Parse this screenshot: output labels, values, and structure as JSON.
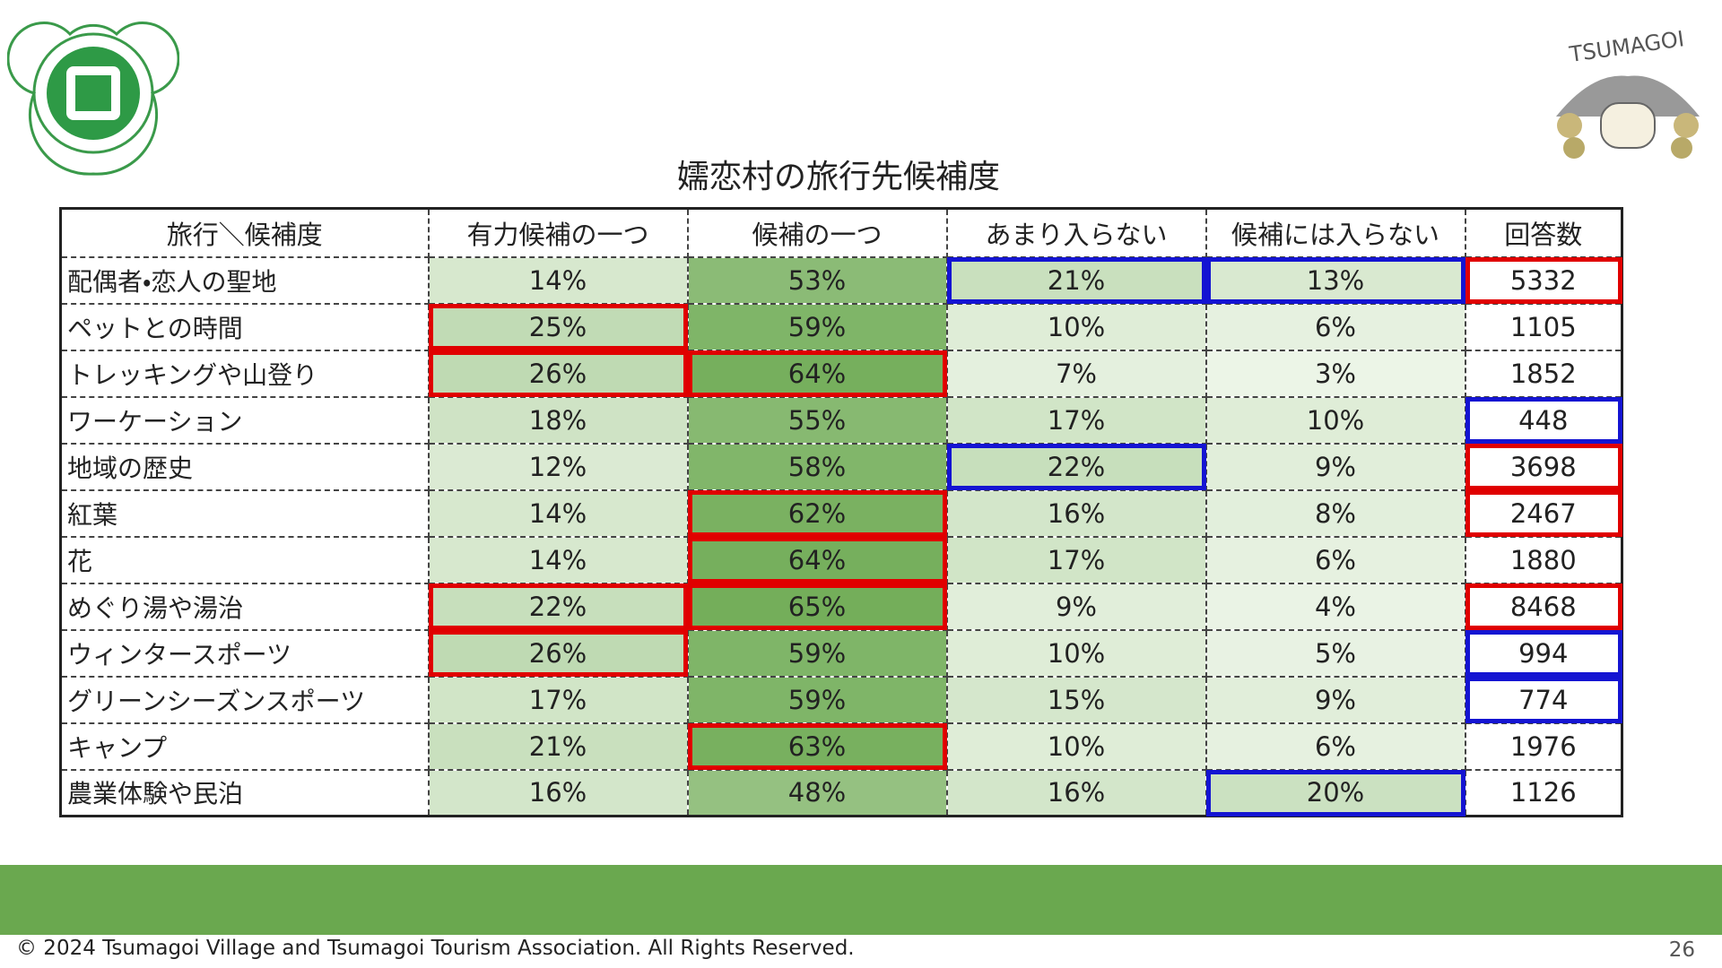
{
  "logo_text": "TSUMAGOI",
  "title": "嬬恋村の旅行先候補度",
  "table": {
    "header": [
      "旅行＼候補度",
      "有力候補の一つ",
      "候補の一つ",
      "あまり入らない",
      "候補には入らない",
      "回答数"
    ],
    "rows": [
      [
        "配偶者・恋人の聖地",
        "14%",
        "53%",
        "21%",
        "13%",
        "5332"
      ],
      [
        "ペットとの時間",
        "25%",
        "59%",
        "10%",
        "6%",
        "1105"
      ],
      [
        "トレッキングや山登り",
        "26%",
        "64%",
        "7%",
        "3%",
        "1852"
      ],
      [
        "ワーケーション",
        "18%",
        "55%",
        "17%",
        "10%",
        "448"
      ],
      [
        "地域の歴史",
        "12%",
        "58%",
        "22%",
        "9%",
        "3698"
      ],
      [
        "紅葉",
        "14%",
        "62%",
        "16%",
        "8%",
        "2467"
      ],
      [
        "花",
        "14%",
        "64%",
        "17%",
        "6%",
        "1880"
      ],
      [
        "めぐり湯や湯治",
        "22%",
        "65%",
        "9%",
        "4%",
        "8468"
      ],
      [
        "ウィンタースポーツ",
        "26%",
        "59%",
        "10%",
        "5%",
        "994"
      ],
      [
        "グリーンシーズンスポーツ",
        "17%",
        "59%",
        "15%",
        "9%",
        "774"
      ],
      [
        "キャンプ",
        "21%",
        "63%",
        "10%",
        "6%",
        "1976"
      ],
      [
        "農業体験や民泊",
        "16%",
        "48%",
        "16%",
        "20%",
        "1126"
      ]
    ],
    "highlights": [
      {
        "row": 0,
        "column": 3,
        "color": "blue"
      },
      {
        "row": 0,
        "column": 4,
        "color": "blue"
      },
      {
        "row": 0,
        "column": 5,
        "color": "red"
      },
      {
        "row": 1,
        "column": 1,
        "color": "red"
      },
      {
        "row": 2,
        "column": 1,
        "color": "red"
      },
      {
        "row": 2,
        "column": 2,
        "color": "red"
      },
      {
        "row": 3,
        "column": 5,
        "color": "blue"
      },
      {
        "row": 4,
        "column": 3,
        "color": "blue"
      },
      {
        "row": 4,
        "column": 5,
        "color": "red"
      },
      {
        "row": 5,
        "column": 2,
        "color": "red"
      },
      {
        "row": 5,
        "column": 5,
        "color": "red"
      },
      {
        "row": 6,
        "column": 2,
        "color": "red"
      },
      {
        "row": 7,
        "column": 1,
        "color": "red"
      },
      {
        "row": 7,
        "column": 2,
        "color": "red"
      },
      {
        "row": 7,
        "column": 5,
        "color": "red"
      },
      {
        "row": 8,
        "column": 1,
        "color": "red"
      },
      {
        "row": 8,
        "column": 5,
        "color": "blue"
      },
      {
        "row": 9,
        "column": 5,
        "color": "blue"
      },
      {
        "row": 10,
        "column": 2,
        "color": "red"
      },
      {
        "row": 11,
        "column": 4,
        "color": "blue"
      }
    ]
  },
  "footer": {
    "copyright": "© 2024 Tsumagoi Village and Tsumagoi Tourism Association. All Rights Reserved.",
    "page_number": "26"
  }
}
